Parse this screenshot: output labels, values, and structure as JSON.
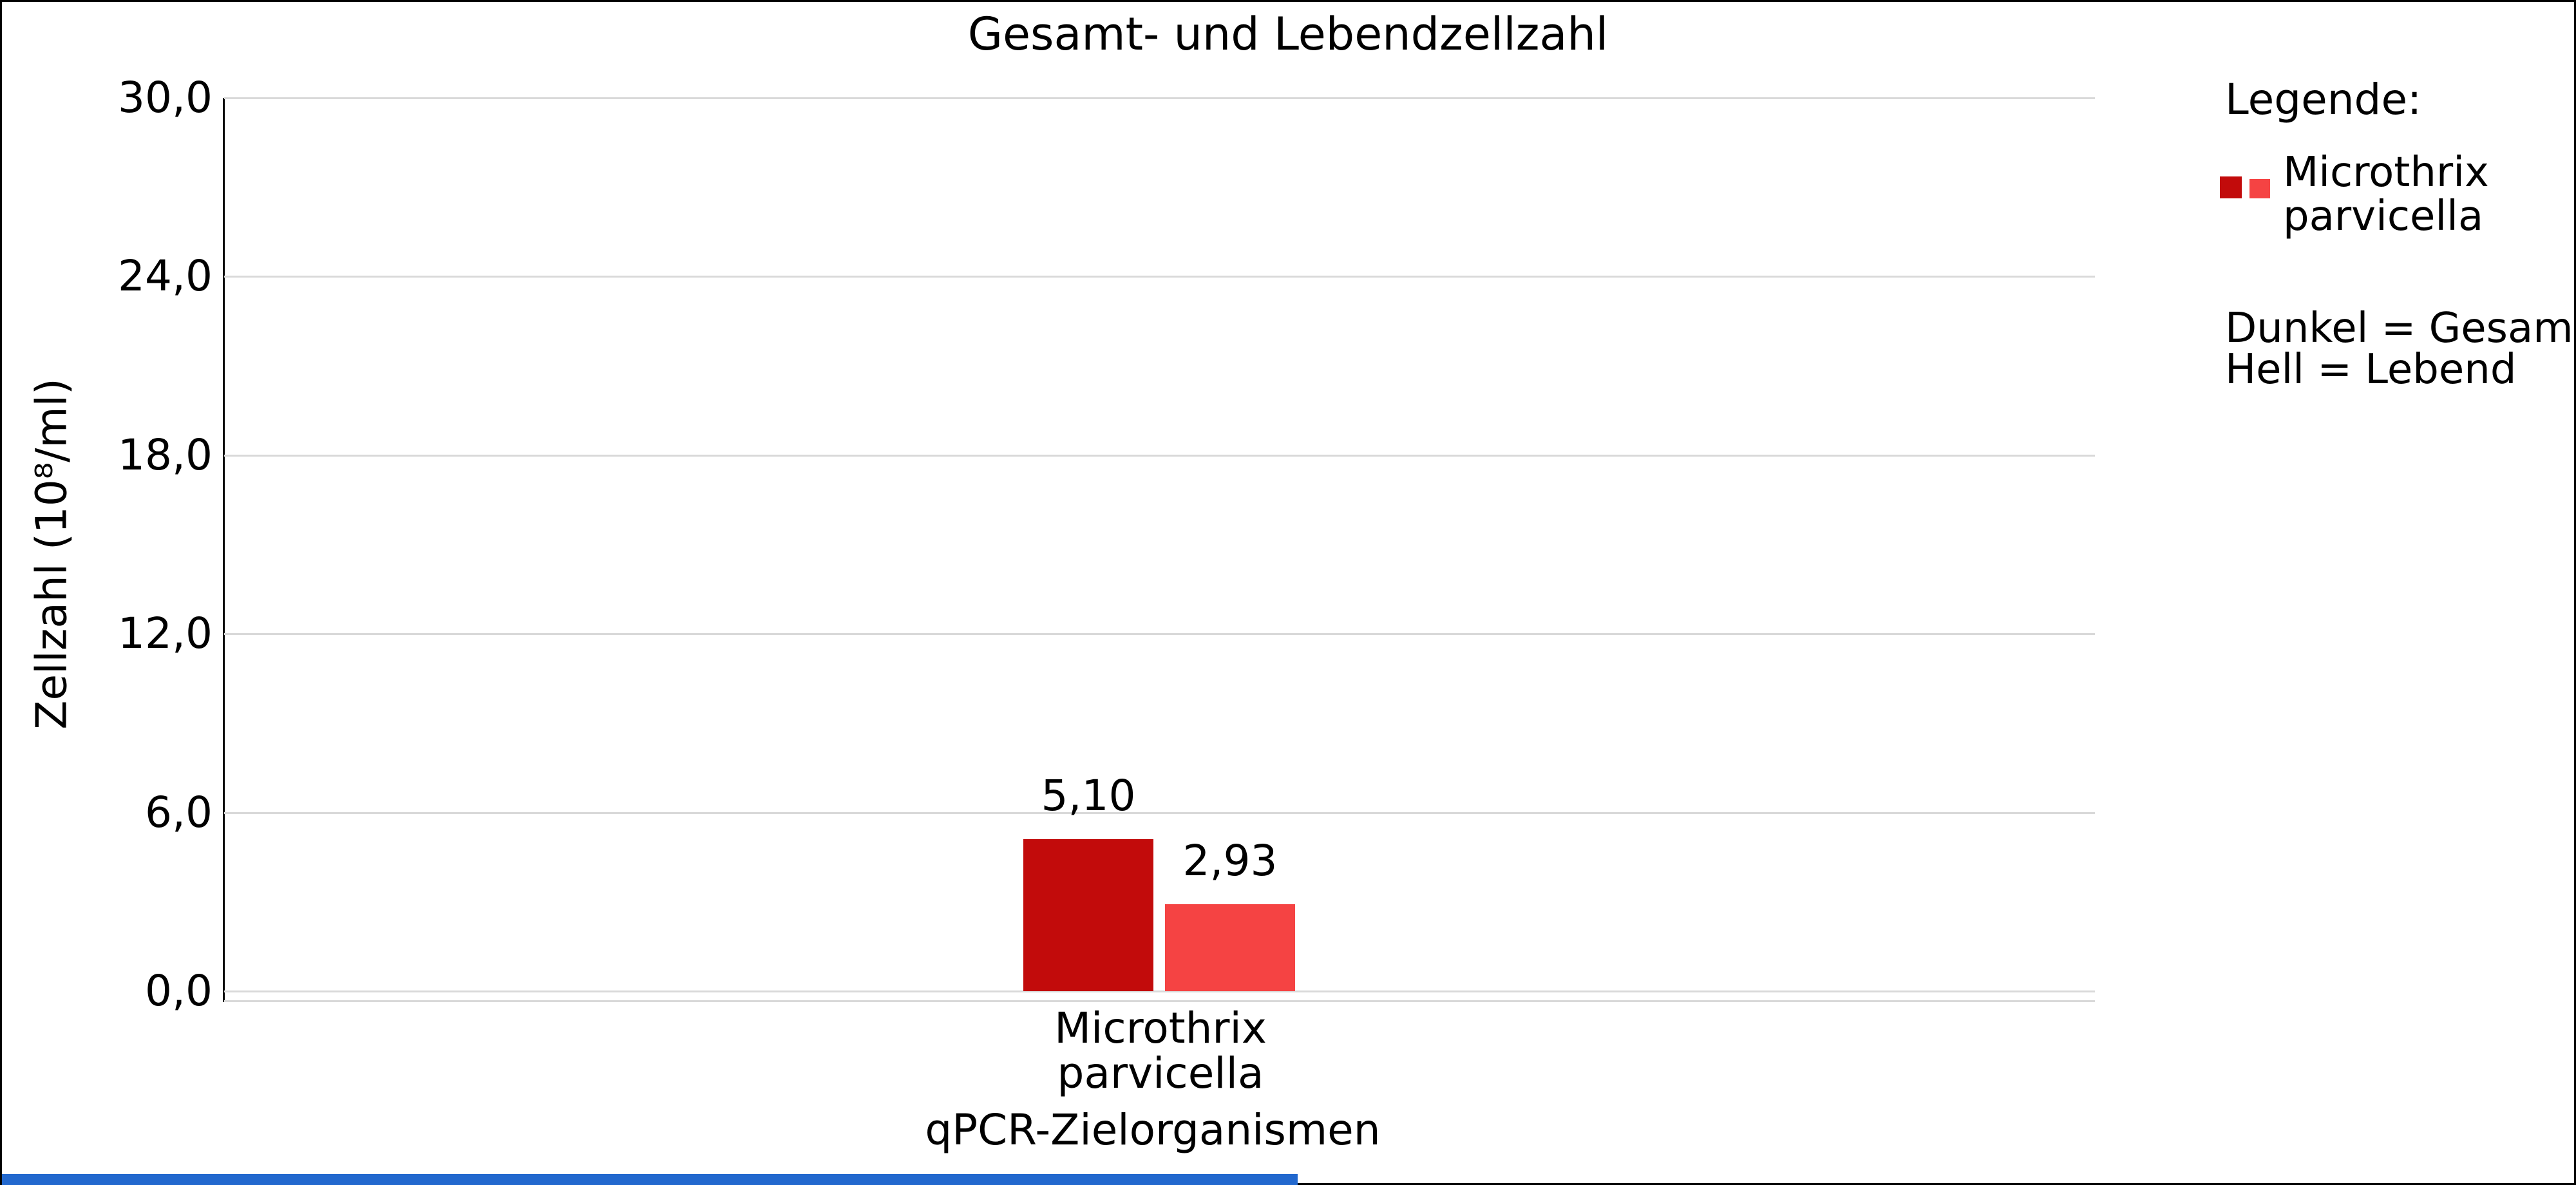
{
  "frame": {
    "border_color": "#000000",
    "background": "#ffffff"
  },
  "chart_data": {
    "type": "bar",
    "title": "Gesamt- und Lebendzellzahl",
    "xlabel": "qPCR-Zielorganismen",
    "ylabel": "Zellzahl (10⁸/ml)",
    "categories": [
      "Microthrix parvicella"
    ],
    "category_label_lines": [
      "Microthrix",
      "parvicella"
    ],
    "series": [
      {
        "name": "Gesamt",
        "values": [
          5.1
        ],
        "value_labels": [
          "5,10"
        ],
        "color": "#C20B0B"
      },
      {
        "name": "Lebend",
        "values": [
          2.93
        ],
        "value_labels": [
          "2,93"
        ],
        "color": "#F54343"
      }
    ],
    "ylim": [
      0,
      30
    ],
    "yticks": [
      {
        "value": 0,
        "label": "0,0"
      },
      {
        "value": 6,
        "label": "6,0"
      },
      {
        "value": 12,
        "label": "12,0"
      },
      {
        "value": 18,
        "label": "18,0"
      },
      {
        "value": 24,
        "label": "24,0"
      },
      {
        "value": 30,
        "label": "30,0"
      }
    ],
    "grid": "horizontal",
    "gridline_color": "#d9d9d9",
    "legend_position": "right"
  },
  "legend": {
    "title": "Legende:",
    "item": {
      "label_lines": [
        "Microthrix",
        "parvicella"
      ],
      "swatch_dark": "#C20B0B",
      "swatch_light": "#F54343"
    },
    "note_lines": [
      "Dunkel = Gesamt",
      "Hell = Lebend"
    ]
  },
  "footer": {
    "accent_bar": {
      "color": "#2268CE"
    }
  }
}
